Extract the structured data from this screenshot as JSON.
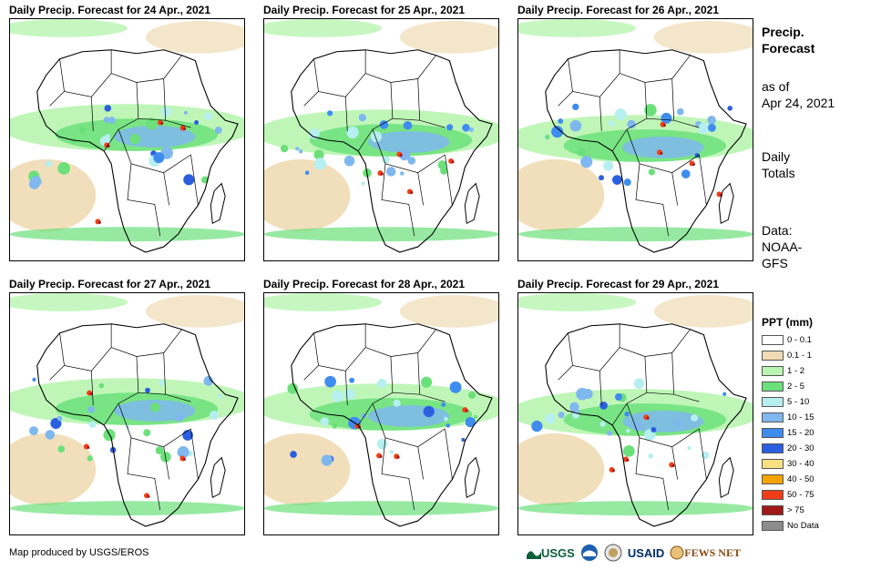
{
  "panels": [
    {
      "title": "Daily Precip. Forecast for 24 Apr., 2021"
    },
    {
      "title": "Daily Precip. Forecast for 25 Apr., 2021"
    },
    {
      "title": "Daily Precip. Forecast for 26 Apr., 2021"
    },
    {
      "title": "Daily Precip. Forecast for 27 Apr., 2021"
    },
    {
      "title": "Daily Precip. Forecast for 28 Apr., 2021"
    },
    {
      "title": "Daily Precip. Forecast for 29 Apr., 2021"
    }
  ],
  "side": {
    "heading_line1": "Precip.",
    "heading_line2": "Forecast",
    "asof_line1": "as of",
    "asof_line2": "Apr 24, 2021",
    "totals_line1": "Daily",
    "totals_line2": "Totals",
    "data_line1": "Data:",
    "data_line2": "NOAA-",
    "data_line3": "GFS"
  },
  "legend": {
    "title": "PPT (mm)",
    "items": [
      {
        "label": "0 - 0.1",
        "color": "#ffffff"
      },
      {
        "label": "0.1 - 1",
        "color": "#efdbb4"
      },
      {
        "label": "1 - 2",
        "color": "#b8f5b0"
      },
      {
        "label": "2 - 5",
        "color": "#6be07a"
      },
      {
        "label": "5 - 10",
        "color": "#b5efef"
      },
      {
        "label": "10 - 15",
        "color": "#7fb7ef"
      },
      {
        "label": "15 - 20",
        "color": "#3f8cef"
      },
      {
        "label": "20 - 30",
        "color": "#2b5fe0"
      },
      {
        "label": "30 - 40",
        "color": "#f7e081"
      },
      {
        "label": "40 - 50",
        "color": "#f5a300"
      },
      {
        "label": "50 - 75",
        "color": "#ef3e17"
      },
      {
        "label": "> 75",
        "color": "#a01919"
      },
      {
        "label": "No Data",
        "color": "#8c8c8c"
      }
    ]
  },
  "footer": {
    "credit": "Map produced by USGS/EROS",
    "logo_usgs": "USGS",
    "logo_usaid": "USAID",
    "logo_fews": "FEWS NET"
  }
}
